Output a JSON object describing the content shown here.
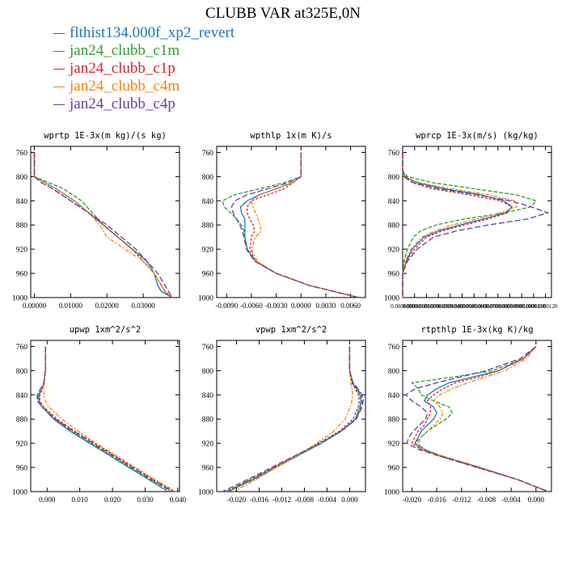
{
  "title": "CLUBB VAR at325E,0N",
  "legend": [
    {
      "label": "flthist134.000f_xp2_revert",
      "color": "#1f77b4"
    },
    {
      "label": "jan24_clubb_c1m",
      "color": "#2ca02c"
    },
    {
      "label": "jan24_clubb_c1p",
      "color": "#d62728"
    },
    {
      "label": "jan24_clubb_c4m",
      "color": "#ff7f0e"
    },
    {
      "label": "jan24_clubb_c4p",
      "color": "#6a3d9a"
    }
  ],
  "chart_data": [
    {
      "type": "line",
      "title": "wprtp  1E-3x(m kg)/(s kg)",
      "xlim": [
        -0.001,
        0.04
      ],
      "ylim": [
        1000,
        750
      ],
      "xticks": [
        0,
        0.01,
        0.02,
        0.03
      ],
      "xtick_labels": [
        "0.00000",
        "0.01000",
        "0.02000",
        "0.03000"
      ],
      "yticks": [
        760,
        800,
        840,
        880,
        920,
        960,
        1000
      ],
      "y": [
        760,
        790,
        800,
        810,
        820,
        840,
        860,
        880,
        900,
        920,
        940,
        960,
        980,
        990,
        1000
      ],
      "series": [
        {
          "name": "flthist134.000f_xp2_revert",
          "x": [
            0,
            0,
            0,
            0.003,
            0.006,
            0.011,
            0.015,
            0.019,
            0.023,
            0.027,
            0.031,
            0.033,
            0.034,
            0.035,
            0.038
          ]
        },
        {
          "name": "jan24_clubb_c1m",
          "x": [
            0,
            0,
            0,
            0.004,
            0.008,
            0.013,
            0.016,
            0.019,
            0.023,
            0.027,
            0.031,
            0.033,
            0.035,
            0.036,
            0.038
          ]
        },
        {
          "name": "jan24_clubb_c1p",
          "x": [
            0,
            0,
            0,
            0.002,
            0.005,
            0.01,
            0.015,
            0.019,
            0.023,
            0.027,
            0.03,
            0.033,
            0.035,
            0.036,
            0.038
          ]
        },
        {
          "name": "jan24_clubb_c4m",
          "x": [
            0,
            0,
            0,
            0.003,
            0.006,
            0.011,
            0.015,
            0.018,
            0.02,
            0.025,
            0.03,
            0.033,
            0.035,
            0.036,
            0.038
          ]
        },
        {
          "name": "jan24_clubb_c4p",
          "x": [
            0,
            0,
            0,
            0.002,
            0.005,
            0.01,
            0.015,
            0.02,
            0.024,
            0.028,
            0.031,
            0.034,
            0.036,
            0.037,
            0.038
          ]
        }
      ]
    },
    {
      "type": "line",
      "title": "wpthlp  1x(m K)/s",
      "xlim": [
        -0.0102,
        0.0078
      ],
      "ylim": [
        1000,
        750
      ],
      "xticks": [
        -0.009,
        -0.006,
        -0.003,
        0,
        0.003,
        0.006
      ],
      "xtick_labels": [
        "-0.0090",
        "-0.0060",
        "-0.0030",
        "0.0000",
        "0.0030",
        "0.0060"
      ],
      "yticks": [
        760,
        800,
        840,
        880,
        920,
        960,
        1000
      ],
      "y": [
        760,
        780,
        800,
        810,
        820,
        830,
        840,
        850,
        860,
        870,
        880,
        890,
        900,
        920,
        940,
        960,
        980,
        1000
      ],
      "series": [
        {
          "name": "flthist134.000f_xp2_revert",
          "x": [
            0,
            0,
            0,
            -0.001,
            -0.003,
            -0.005,
            -0.0065,
            -0.0073,
            -0.0072,
            -0.0068,
            -0.0068,
            -0.0068,
            -0.0068,
            -0.0065,
            -0.0055,
            -0.003,
            0.001,
            0.007
          ]
        },
        {
          "name": "jan24_clubb_c1m",
          "x": [
            0,
            0,
            0,
            -0.002,
            -0.005,
            -0.008,
            -0.0095,
            -0.0093,
            -0.0085,
            -0.0078,
            -0.0072,
            -0.0069,
            -0.0068,
            -0.0065,
            -0.0055,
            -0.003,
            0.001,
            0.007
          ]
        },
        {
          "name": "jan24_clubb_c1p",
          "x": [
            0,
            0,
            0,
            -0.001,
            -0.002,
            -0.004,
            -0.006,
            -0.0065,
            -0.0065,
            -0.0062,
            -0.0058,
            -0.0056,
            -0.006,
            -0.0062,
            -0.0055,
            -0.003,
            0.001,
            0.007
          ]
        },
        {
          "name": "jan24_clubb_c4m",
          "x": [
            0,
            0,
            0,
            -0.001,
            -0.003,
            -0.005,
            -0.006,
            -0.0058,
            -0.0055,
            -0.0052,
            -0.005,
            -0.0048,
            -0.0055,
            -0.006,
            -0.0053,
            -0.003,
            0.001,
            0.007
          ]
        },
        {
          "name": "jan24_clubb_c4p",
          "x": [
            0,
            0,
            0,
            -0.0015,
            -0.004,
            -0.0065,
            -0.008,
            -0.0084,
            -0.0082,
            -0.0078,
            -0.0074,
            -0.0071,
            -0.0069,
            -0.0066,
            -0.0056,
            -0.003,
            0.001,
            0.007
          ]
        }
      ]
    },
    {
      "type": "line",
      "title": "wprcp  1E-3x(m/s) (kg/kg)",
      "xlim": [
        0,
        1.25e-05
      ],
      "ylim": [
        1000,
        750
      ],
      "xticks": [
        0,
        1e-06,
        2e-06,
        3e-06,
        4e-06,
        5e-06,
        6e-06,
        7e-06,
        8e-06,
        9e-06,
        1e-05,
        1.1e-05,
        1.2e-05
      ],
      "xtick_labels": [
        "0.0000000",
        "0.0000010",
        "0.0000020",
        "0.0000030",
        "0.0000040",
        "0.0000050",
        "0.0000060",
        "0.0000070",
        "0.0000080",
        "0.0000090",
        "0.0000100",
        "0.0000110",
        "0.0000120"
      ],
      "yticks": [
        760,
        800,
        840,
        880,
        920,
        960,
        1000
      ],
      "y": [
        760,
        790,
        800,
        810,
        820,
        830,
        840,
        850,
        860,
        870,
        880,
        890,
        900,
        920,
        940,
        960,
        980,
        1000
      ],
      "series": [
        {
          "name": "flthist134.000f_xp2_revert",
          "x": [
            0,
            0,
            2e-07,
            1.2e-06,
            3.5e-06,
            6.5e-06,
            8.5e-06,
            9.2e-06,
            8.6e-06,
            6.8e-06,
            4.8e-06,
            3e-06,
            1.8e-06,
            8e-07,
            3e-07,
            0,
            0,
            0
          ]
        },
        {
          "name": "jan24_clubb_c1m",
          "x": [
            0,
            0,
            4e-07,
            2.5e-06,
            6e-06,
            9.5e-06,
            1.12e-05,
            1.08e-05,
            8.5e-06,
            5.2e-06,
            2.8e-06,
            1.5e-06,
            9e-07,
            4e-07,
            1e-07,
            0,
            0,
            0
          ]
        },
        {
          "name": "jan24_clubb_c1p",
          "x": [
            0,
            0,
            1e-07,
            8e-07,
            2.5e-06,
            5.5e-06,
            8.2e-06,
            9.2e-06,
            8.8e-06,
            7.2e-06,
            5.2e-06,
            3.3e-06,
            2e-06,
            1e-06,
            3e-07,
            0,
            0,
            0
          ]
        },
        {
          "name": "jan24_clubb_c4m",
          "x": [
            0,
            0,
            2e-07,
            1.4e-06,
            4e-06,
            7.2e-06,
            9.4e-06,
            9.6e-06,
            8.2e-06,
            6.2e-06,
            4.2e-06,
            2.7e-06,
            1.6e-06,
            7e-07,
            2e-07,
            0,
            0,
            0
          ]
        },
        {
          "name": "jan24_clubb_c4p",
          "x": [
            0,
            0,
            1e-07,
            9e-07,
            3e-06,
            6.2e-06,
            9e-06,
            1.08e-05,
            1.22e-05,
            1.05e-05,
            7.2e-06,
            4.5e-06,
            2.6e-06,
            1.2e-06,
            4e-07,
            0,
            0,
            0
          ]
        }
      ]
    },
    {
      "type": "line",
      "title": "upwp  1xm^2/s^2",
      "xlim": [
        -0.005,
        0.0405
      ],
      "ylim": [
        1000,
        750
      ],
      "xticks": [
        0,
        0.01,
        0.02,
        0.03,
        0.04
      ],
      "xtick_labels": [
        "0.000",
        "0.010",
        "0.020",
        "0.030",
        "0.040"
      ],
      "yticks": [
        760,
        800,
        840,
        880,
        920,
        960,
        1000
      ],
      "y": [
        760,
        800,
        820,
        830,
        840,
        850,
        860,
        880,
        900,
        920,
        940,
        960,
        980,
        1000
      ],
      "series": [
        {
          "name": "flthist134.000f_xp2_revert",
          "x": [
            -0.0005,
            -0.0005,
            -0.001,
            -0.0015,
            -0.0025,
            -0.0025,
            -0.0015,
            0.002,
            0.007,
            0.013,
            0.019,
            0.025,
            0.031,
            0.037
          ]
        },
        {
          "name": "jan24_clubb_c1m",
          "x": [
            -0.0005,
            -0.0005,
            -0.001,
            -0.0015,
            -0.0028,
            -0.0028,
            -0.0015,
            0.0025,
            0.0075,
            0.0135,
            0.0195,
            0.0255,
            0.0315,
            0.038
          ]
        },
        {
          "name": "jan24_clubb_c1p",
          "x": [
            -0.0005,
            -0.0005,
            -0.001,
            -0.0015,
            -0.0022,
            -0.0022,
            -0.001,
            0.003,
            0.0085,
            0.0145,
            0.0205,
            0.0265,
            0.0325,
            0.039
          ]
        },
        {
          "name": "jan24_clubb_c4m",
          "x": [
            -0.0005,
            -0.0005,
            -0.0008,
            -0.001,
            -0.001,
            -0.0005,
            0.0005,
            0.0045,
            0.0095,
            0.015,
            0.021,
            0.027,
            0.033,
            0.0395
          ]
        },
        {
          "name": "jan24_clubb_c4p",
          "x": [
            -0.0005,
            -0.0005,
            -0.001,
            -0.002,
            -0.003,
            -0.003,
            -0.0015,
            0.0025,
            0.008,
            0.014,
            0.02,
            0.026,
            0.032,
            0.0385
          ]
        }
      ]
    },
    {
      "type": "line",
      "title": "vpwp  1xm^2/s^2",
      "xlim": [
        -0.0235,
        0.0028
      ],
      "ylim": [
        1000,
        750
      ],
      "xticks": [
        -0.02,
        -0.016,
        -0.012,
        -0.008,
        -0.004,
        0
      ],
      "xtick_labels": [
        "-0.020",
        "-0.016",
        "-0.012",
        "-0.008",
        "-0.004",
        "0.000"
      ],
      "yticks": [
        760,
        800,
        840,
        880,
        920,
        960,
        1000
      ],
      "y": [
        760,
        800,
        820,
        830,
        840,
        850,
        860,
        880,
        900,
        920,
        940,
        960,
        980,
        1000
      ],
      "series": [
        {
          "name": "flthist134.000f_xp2_revert",
          "x": [
            0,
            0,
            0.0005,
            0.0012,
            0.0018,
            0.002,
            0.0018,
            0.001,
            -0.0015,
            -0.005,
            -0.009,
            -0.013,
            -0.017,
            -0.0215
          ]
        },
        {
          "name": "jan24_clubb_c1m",
          "x": [
            0,
            0,
            0.0006,
            0.0014,
            0.002,
            0.0022,
            0.002,
            0.0012,
            -0.0014,
            -0.005,
            -0.0092,
            -0.0133,
            -0.0175,
            -0.022
          ]
        },
        {
          "name": "jan24_clubb_c1p",
          "x": [
            0,
            0,
            0.0004,
            0.001,
            0.0015,
            0.0017,
            0.0015,
            0.0006,
            -0.0018,
            -0.0055,
            -0.0095,
            -0.0135,
            -0.0175,
            -0.0215
          ]
        },
        {
          "name": "jan24_clubb_c4m",
          "x": [
            0,
            0,
            0.0002,
            0.0004,
            0.0005,
            0.0004,
            0.0001,
            -0.0008,
            -0.0028,
            -0.0058,
            -0.0092,
            -0.013,
            -0.0165,
            -0.0205
          ]
        },
        {
          "name": "jan24_clubb_c4p",
          "x": [
            0,
            0,
            0.0006,
            0.0015,
            0.0022,
            0.0024,
            0.0022,
            0.0012,
            -0.0015,
            -0.0052,
            -0.0095,
            -0.0138,
            -0.018,
            -0.0225
          ]
        }
      ]
    },
    {
      "type": "line",
      "title": "rtpthlp  1E-3x(kg K)/kg",
      "xlim": [
        -0.0215,
        0.0025
      ],
      "ylim": [
        1000,
        750
      ],
      "xticks": [
        -0.02,
        -0.016,
        -0.012,
        -0.008,
        -0.004,
        0
      ],
      "xtick_labels": [
        "-0.020",
        "-0.016",
        "-0.012",
        "-0.008",
        "-0.004",
        "0.000"
      ],
      "yticks": [
        760,
        800,
        840,
        880,
        920,
        960,
        1000
      ],
      "y": [
        760,
        780,
        800,
        810,
        820,
        830,
        840,
        850,
        860,
        870,
        880,
        890,
        900,
        910,
        920,
        930,
        940,
        960,
        980,
        1000
      ],
      "series": [
        {
          "name": "flthist134.000f_xp2_revert",
          "x": [
            0,
            -0.002,
            -0.006,
            -0.01,
            -0.014,
            -0.016,
            -0.0175,
            -0.018,
            -0.0165,
            -0.016,
            -0.0165,
            -0.0175,
            -0.0185,
            -0.019,
            -0.0195,
            -0.018,
            -0.0155,
            -0.009,
            -0.003,
            0.002
          ]
        },
        {
          "name": "jan24_clubb_c1m",
          "x": [
            0,
            -0.002,
            -0.007,
            -0.013,
            -0.02,
            -0.019,
            -0.0185,
            -0.0165,
            -0.014,
            -0.0135,
            -0.0145,
            -0.016,
            -0.0175,
            -0.0185,
            -0.0195,
            -0.0185,
            -0.016,
            -0.0095,
            -0.003,
            0.002
          ]
        },
        {
          "name": "jan24_clubb_c1p",
          "x": [
            0,
            -0.002,
            -0.006,
            -0.009,
            -0.013,
            -0.015,
            -0.0165,
            -0.0175,
            -0.017,
            -0.017,
            -0.0175,
            -0.018,
            -0.019,
            -0.0195,
            -0.02,
            -0.0185,
            -0.0155,
            -0.009,
            -0.003,
            0.002
          ]
        },
        {
          "name": "jan24_clubb_c4m",
          "x": [
            0,
            -0.0015,
            -0.005,
            -0.008,
            -0.011,
            -0.0135,
            -0.0155,
            -0.0165,
            -0.0155,
            -0.015,
            -0.0155,
            -0.0165,
            -0.0175,
            -0.0185,
            -0.019,
            -0.018,
            -0.0155,
            -0.009,
            -0.003,
            0.002
          ]
        },
        {
          "name": "jan24_clubb_c4p",
          "x": [
            0,
            -0.0025,
            -0.008,
            -0.012,
            -0.016,
            -0.0195,
            -0.021,
            -0.02,
            -0.0185,
            -0.0175,
            -0.0178,
            -0.0188,
            -0.0198,
            -0.0205,
            -0.0208,
            -0.019,
            -0.016,
            -0.0095,
            -0.003,
            0.002
          ]
        }
      ]
    }
  ]
}
